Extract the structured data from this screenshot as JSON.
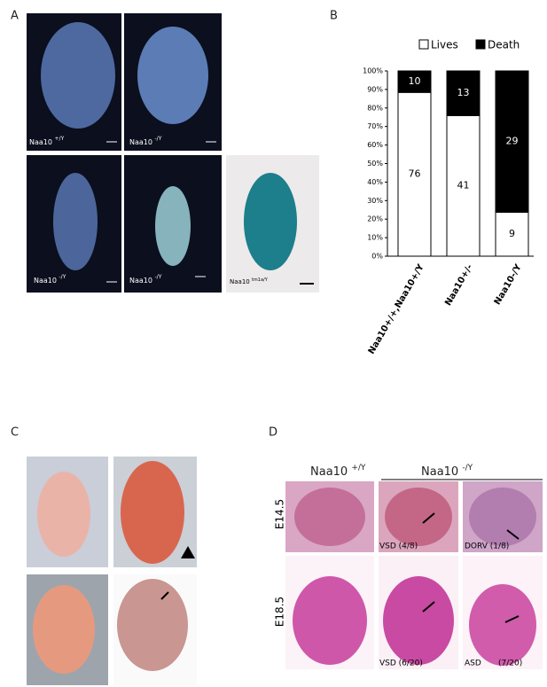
{
  "panels": {
    "a": "A",
    "b": "B",
    "c": "C",
    "d": "D"
  },
  "panel_a": {
    "images": [
      {
        "gene": "Naa10",
        "genotype": "+/Y"
      },
      {
        "gene": "Naa10",
        "genotype": "-/Y"
      },
      {
        "gene": "Naa10",
        "genotype": "-/Y"
      },
      {
        "gene": "Naa10",
        "genotype": "-/Y"
      },
      {
        "gene": "Naa10",
        "genotype": "tm1a/Y"
      }
    ]
  },
  "panel_d": {
    "columns": [
      {
        "gene": "Naa10",
        "genotype": "+/Y"
      },
      {
        "gene": "Naa10",
        "genotype": "-/Y"
      }
    ],
    "rows": [
      "E14.5",
      "E18.5"
    ],
    "captions": [
      "VSD (4/8)",
      "DORV (1/8)",
      "VSD (6/20)",
      "ASD",
      "(7/20)"
    ]
  },
  "chart_data": {
    "type": "bar",
    "stacked": true,
    "categories": [
      "Naa10+/+,Naa10+/Y",
      "Naa10+/-",
      "Naa10-/Y"
    ],
    "series": [
      {
        "name": "Lives",
        "color": "#ffffff",
        "values": [
          88.4,
          75.9,
          23.7
        ],
        "counts": [
          76,
          41,
          9
        ]
      },
      {
        "name": "Death",
        "color": "#000000",
        "values": [
          11.6,
          24.1,
          76.3
        ],
        "counts": [
          10,
          13,
          29
        ]
      }
    ],
    "ylim": [
      0,
      100
    ],
    "yticks": [
      {
        "value": 0,
        "label": "0%"
      },
      {
        "value": 10,
        "label": "10%"
      },
      {
        "value": 20,
        "label": "20%"
      },
      {
        "value": 30,
        "label": "30%"
      },
      {
        "value": 40,
        "label": "40%"
      },
      {
        "value": 50,
        "label": "50%"
      },
      {
        "value": 60,
        "label": "60%"
      },
      {
        "value": 70,
        "label": "70%"
      },
      {
        "value": 80,
        "label": "80%"
      },
      {
        "value": 90,
        "label": "90%"
      },
      {
        "value": 100,
        "label": "100%"
      }
    ],
    "legend": "top"
  }
}
